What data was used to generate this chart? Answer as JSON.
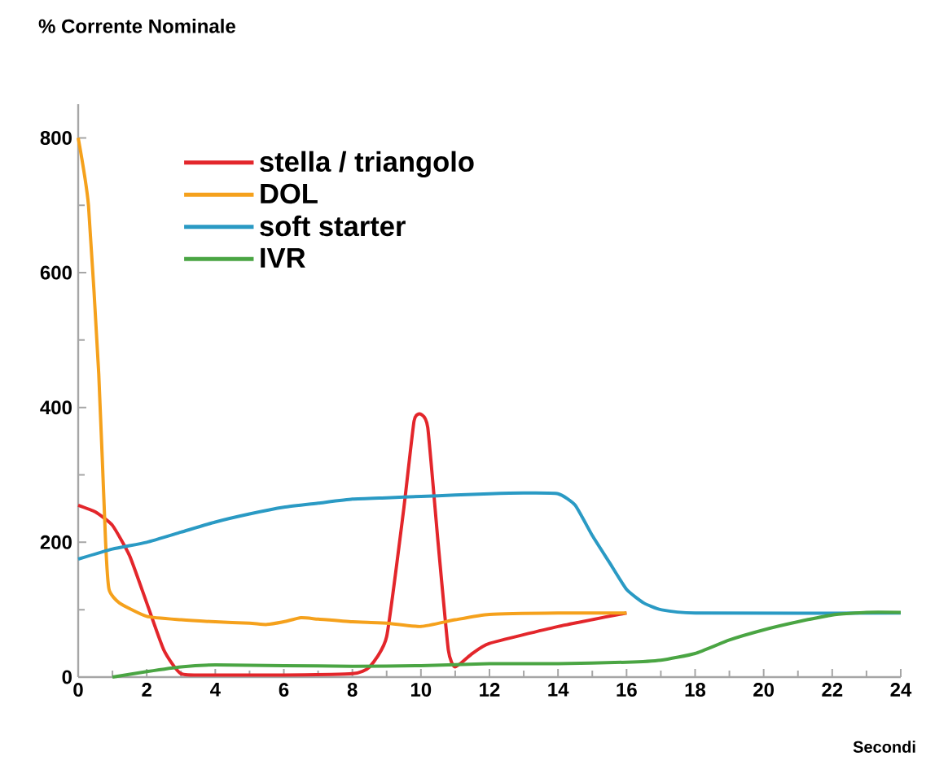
{
  "chart_data": {
    "type": "line",
    "ylabel": "% Corrente Nominale",
    "xlabel": "Secondi",
    "xlim": [
      0,
      24
    ],
    "xticks": [
      0,
      2,
      4,
      6,
      8,
      10,
      12,
      14,
      16,
      18,
      20,
      22,
      24
    ],
    "ylim": [
      0,
      850
    ],
    "yticks": [
      0,
      200,
      400,
      600,
      800
    ],
    "legend": "top left",
    "marker": "none",
    "line_style": "solid",
    "series": [
      {
        "name": "stella / triangolo",
        "color": "#e3262b",
        "x": [
          0,
          0.5,
          1,
          1.5,
          2,
          2.5,
          3,
          4,
          6,
          8,
          8.5,
          9,
          9.5,
          9.8,
          10,
          10.2,
          10.5,
          10.8,
          11,
          11.5,
          12,
          14,
          16
        ],
        "values": [
          255,
          245,
          225,
          180,
          110,
          40,
          5,
          3,
          3,
          5,
          15,
          60,
          250,
          380,
          390,
          370,
          200,
          40,
          15,
          35,
          50,
          75,
          95
        ]
      },
      {
        "name": "DOL",
        "color": "#f5a11c",
        "x": [
          0,
          0.3,
          0.6,
          0.8,
          0.9,
          1.2,
          2,
          3,
          4,
          5,
          5.5,
          6,
          6.5,
          7,
          8,
          9,
          10,
          11,
          12,
          14,
          16
        ],
        "values": [
          800,
          700,
          450,
          200,
          130,
          110,
          90,
          85,
          82,
          80,
          78,
          82,
          88,
          86,
          82,
          80,
          75,
          85,
          93,
          95,
          95
        ]
      },
      {
        "name": "soft starter",
        "color": "#2a9ac4",
        "x": [
          0,
          1,
          2,
          3,
          4,
          5,
          6,
          7,
          8,
          9,
          10,
          11,
          12,
          13,
          14,
          14.5,
          15,
          15.5,
          16,
          16.5,
          17,
          18,
          24
        ],
        "values": [
          175,
          190,
          200,
          215,
          230,
          242,
          252,
          258,
          264,
          266,
          268,
          270,
          272,
          273,
          272,
          255,
          210,
          170,
          130,
          110,
          100,
          95,
          95
        ]
      },
      {
        "name": "IVR",
        "color": "#4aa543",
        "x": [
          1,
          2,
          3,
          4,
          6,
          8,
          10,
          12,
          14,
          16,
          17,
          18,
          19,
          20,
          21,
          22,
          23,
          24
        ],
        "values": [
          0,
          8,
          15,
          18,
          17,
          16,
          17,
          20,
          20,
          22,
          25,
          35,
          55,
          70,
          82,
          92,
          96,
          96
        ]
      }
    ]
  }
}
